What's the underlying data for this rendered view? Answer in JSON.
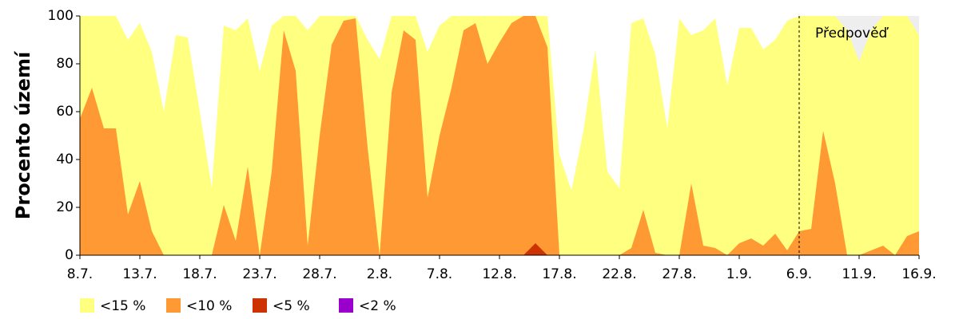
{
  "chart_data": {
    "type": "area",
    "ylabel": "Procento území",
    "annotation": {
      "text": "Předpověď",
      "at": "6.9."
    },
    "categories": [
      "8.7.",
      null,
      null,
      null,
      null,
      "13.7.",
      null,
      null,
      null,
      null,
      "18.7.",
      null,
      null,
      null,
      null,
      "23.7.",
      null,
      null,
      null,
      null,
      "28.7.",
      null,
      null,
      null,
      null,
      "2.8.",
      null,
      null,
      null,
      null,
      "7.8.",
      null,
      null,
      null,
      null,
      "12.8.",
      null,
      null,
      null,
      null,
      "17.8.",
      null,
      null,
      null,
      null,
      "22.8.",
      null,
      null,
      null,
      null,
      "27.8.",
      null,
      null,
      null,
      null,
      "1.9.",
      null,
      null,
      null,
      null,
      "6.9.",
      null,
      null,
      null,
      null,
      "11.9.",
      null,
      null,
      null,
      null,
      "16.9."
    ],
    "series": [
      {
        "name": "<15 %",
        "color": "#ffff80",
        "values": [
          100,
          100,
          100,
          100,
          90,
          97,
          85,
          60,
          92,
          91,
          60,
          28,
          96,
          94,
          99,
          77,
          96,
          100,
          100,
          94,
          100,
          100,
          100,
          100,
          90,
          82,
          100,
          100,
          100,
          85,
          96,
          100,
          100,
          100,
          100,
          100,
          100,
          100,
          100,
          100,
          42,
          27,
          52,
          86,
          35,
          28,
          97,
          99,
          84,
          53,
          99,
          92,
          94,
          99,
          71,
          95,
          95,
          86,
          90,
          98,
          100,
          100,
          100,
          100,
          94,
          81,
          94,
          100,
          100,
          100,
          92
        ]
      },
      {
        "name": "<10 %",
        "color": "#ff9933",
        "values": [
          57,
          70,
          53,
          53,
          17,
          31,
          10,
          0,
          0,
          0,
          0,
          0,
          21,
          6,
          37,
          0,
          35,
          94,
          77,
          4,
          50,
          88,
          98,
          99,
          45,
          0,
          68,
          94,
          90,
          24,
          50,
          70,
          94,
          97,
          80,
          89,
          97,
          100,
          100,
          87,
          0,
          0,
          0,
          0,
          0,
          0,
          3,
          19,
          1,
          0,
          0,
          30,
          4,
          3,
          0,
          5,
          7,
          4,
          9,
          2,
          10,
          11,
          52,
          30,
          0,
          0,
          2,
          4,
          0,
          8,
          10
        ]
      },
      {
        "name": "<5 %",
        "color": "#cc3300",
        "values": [
          0,
          0,
          0,
          0,
          0,
          0,
          0,
          0,
          0,
          0,
          0,
          0,
          0,
          0,
          0,
          0,
          0,
          0,
          0,
          0,
          0,
          0,
          0,
          0,
          0,
          0,
          0,
          0,
          0,
          0,
          0,
          0,
          0,
          0,
          0,
          0,
          0,
          0,
          5,
          0,
          0,
          0,
          0,
          0,
          0,
          0,
          0,
          0,
          0,
          0,
          0,
          0,
          0,
          0,
          0,
          0,
          0,
          0,
          0,
          0,
          0,
          0,
          0,
          0,
          0,
          0,
          0,
          0,
          0,
          0,
          0
        ]
      },
      {
        "name": "<2 %",
        "color": "#9900cc",
        "values": [
          0,
          0,
          0,
          0,
          0,
          0,
          0,
          0,
          0,
          0,
          0,
          0,
          0,
          0,
          0,
          0,
          0,
          0,
          0,
          0,
          0,
          0,
          0,
          0,
          0,
          0,
          0,
          0,
          0,
          0,
          0,
          0,
          0,
          0,
          0,
          0,
          0,
          0,
          0,
          0,
          0,
          0,
          0,
          0,
          0,
          0,
          0,
          0,
          0,
          0,
          0,
          0,
          0,
          0,
          0,
          0,
          0,
          0,
          0,
          0,
          0,
          0,
          0,
          0,
          0,
          0,
          0,
          0,
          0,
          0,
          0
        ]
      }
    ],
    "ylim": [
      0,
      100
    ],
    "yticks": [
      0,
      20,
      40,
      60,
      80,
      100
    ],
    "grid": false
  }
}
